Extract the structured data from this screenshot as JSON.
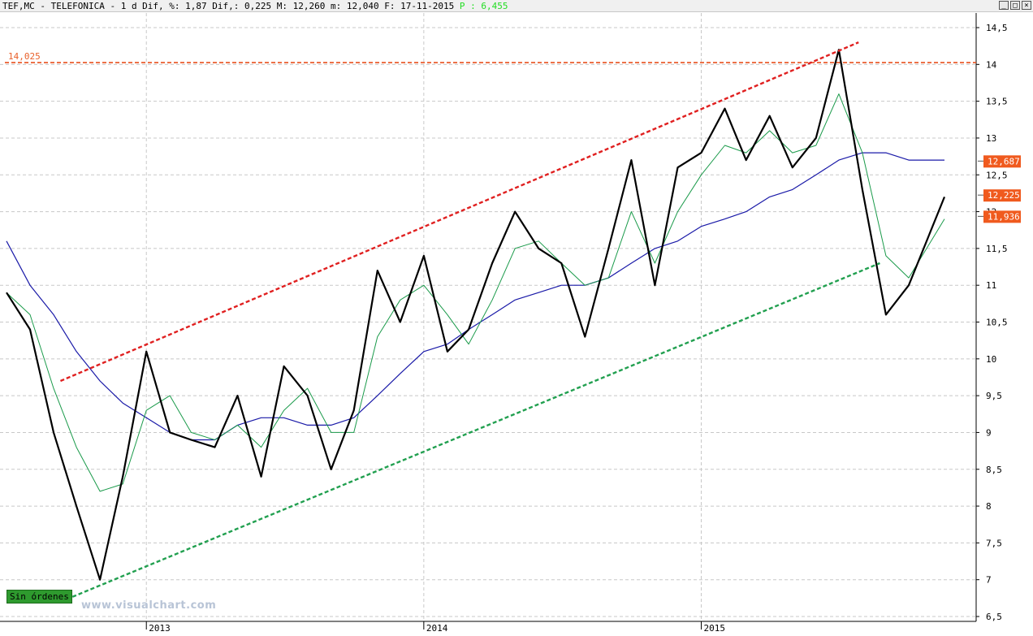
{
  "header": {
    "symbol_text": "TEF,MC - TELEFONICA -  1 d Dif, %: 1,87 Dif,: 0,225 M: 12,260 m: 12,040 F: 17-11-2015",
    "p_label": "P",
    "p_value": ": 6,455",
    "window_buttons": [
      "_",
      "□",
      "×"
    ]
  },
  "order_button": "Sin órdenes",
  "watermark": "www.visualchart.com",
  "colors": {
    "price": "#000000",
    "sma_short": "#1a9a4a",
    "sma_long": "#1a1aa8",
    "resistance": "#e02020",
    "support": "#22a050",
    "horizontal_level": "#e8501e",
    "tag_bg": "#f05a1e",
    "grid": "#c8c8c8"
  },
  "chart_data": {
    "type": "line",
    "x": [
      "2012-07-01",
      "2012-08-01",
      "2012-09-01",
      "2012-10-01",
      "2012-11-01",
      "2012-12-01",
      "2013-01-01",
      "2013-02-01",
      "2013-03-01",
      "2013-04-01",
      "2013-05-01",
      "2013-06-01",
      "2013-07-01",
      "2013-08-01",
      "2013-09-01",
      "2013-10-01",
      "2013-11-01",
      "2013-12-01",
      "2014-01-01",
      "2014-02-01",
      "2014-03-01",
      "2014-04-01",
      "2014-05-01",
      "2014-06-01",
      "2014-07-01",
      "2014-08-01",
      "2014-09-01",
      "2014-10-01",
      "2014-11-01",
      "2014-12-01",
      "2015-01-01",
      "2015-02-01",
      "2015-03-01",
      "2015-04-01",
      "2015-05-01",
      "2015-06-01",
      "2015-07-01",
      "2015-08-01",
      "2015-09-01",
      "2015-10-01",
      "2015-11-17"
    ],
    "series": [
      {
        "key": "price",
        "values": [
          10.9,
          10.4,
          9.0,
          8.0,
          7.0,
          8.4,
          10.1,
          9.0,
          8.9,
          8.8,
          9.5,
          8.4,
          9.9,
          9.5,
          8.5,
          9.3,
          11.2,
          10.5,
          11.4,
          10.1,
          10.4,
          11.3,
          12.0,
          11.5,
          11.3,
          10.3,
          11.5,
          12.7,
          11.0,
          12.6,
          12.8,
          13.4,
          12.7,
          13.3,
          12.6,
          13.0,
          14.2,
          12.3,
          10.6,
          11.0,
          12.2
        ]
      },
      {
        "key": "sma_short",
        "values": [
          10.9,
          10.6,
          9.6,
          8.8,
          8.2,
          8.3,
          9.3,
          9.5,
          9.0,
          8.9,
          9.1,
          8.8,
          9.3,
          9.6,
          9.0,
          9.0,
          10.3,
          10.8,
          11.0,
          10.6,
          10.2,
          10.8,
          11.5,
          11.6,
          11.3,
          11.0,
          11.1,
          12.0,
          11.3,
          12.0,
          12.5,
          12.9,
          12.8,
          13.1,
          12.8,
          12.9,
          13.6,
          12.8,
          11.4,
          11.1,
          11.9
        ]
      },
      {
        "key": "sma_long",
        "values": [
          11.6,
          11.0,
          10.6,
          10.1,
          9.7,
          9.4,
          9.2,
          9.0,
          8.9,
          8.9,
          9.1,
          9.2,
          9.2,
          9.1,
          9.1,
          9.2,
          9.5,
          9.8,
          10.1,
          10.2,
          10.4,
          10.6,
          10.8,
          10.9,
          11.0,
          11.0,
          11.1,
          11.3,
          11.5,
          11.6,
          11.8,
          11.9,
          12.0,
          12.2,
          12.3,
          12.5,
          12.7,
          12.8,
          12.8,
          12.7,
          12.7
        ]
      }
    ],
    "trendlines": [
      {
        "key": "resistance",
        "x": [
          "2012-09-10",
          "2015-07-27"
        ],
        "y": [
          9.7,
          14.3
        ]
      },
      {
        "key": "support",
        "x": [
          "2012-09-10",
          "2015-08-24"
        ],
        "y": [
          6.7,
          11.3
        ]
      }
    ],
    "horizontal_level": {
      "value": 14.025,
      "label": "14,025"
    },
    "yticks": [
      "14,5",
      "14",
      "13,5",
      "13",
      "12,5",
      "12",
      "11,5",
      "11",
      "10,5",
      "10",
      "9,5",
      "9",
      "8,5",
      "8",
      "7,5",
      "7",
      "6,5"
    ],
    "ylim": [
      6.5,
      14.5
    ],
    "xticks": [
      "2013",
      "2014",
      "2015"
    ],
    "price_tags": [
      "12,687",
      "12,225",
      "11,936"
    ],
    "grid": true
  }
}
